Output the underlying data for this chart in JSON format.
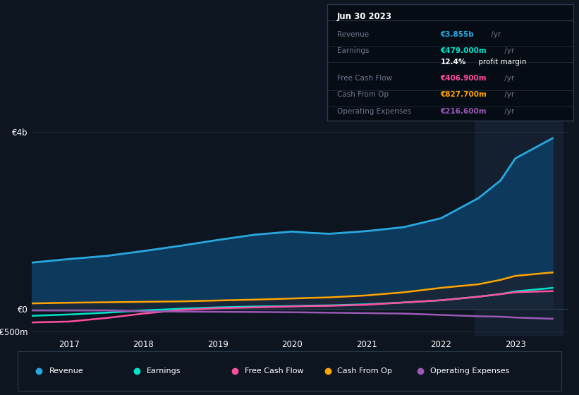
{
  "bg_color": "#0d1520",
  "plot_bg": "#0d1520",
  "years": [
    2016.5,
    2017.0,
    2017.5,
    2018.0,
    2018.5,
    2019.0,
    2019.5,
    2020.0,
    2020.25,
    2020.5,
    2021.0,
    2021.5,
    2022.0,
    2022.5,
    2022.8,
    2023.0,
    2023.5
  ],
  "revenue": [
    1050,
    1130,
    1200,
    1310,
    1430,
    1560,
    1680,
    1750,
    1720,
    1700,
    1760,
    1850,
    2050,
    2500,
    2900,
    3400,
    3855
  ],
  "earnings": [
    -150,
    -120,
    -80,
    -30,
    10,
    40,
    60,
    70,
    80,
    85,
    110,
    150,
    200,
    280,
    340,
    400,
    479
  ],
  "free_cash": [
    -300,
    -280,
    -200,
    -100,
    -20,
    20,
    40,
    60,
    70,
    75,
    100,
    150,
    200,
    280,
    340,
    380,
    407
  ],
  "cash_from_op": [
    130,
    145,
    155,
    165,
    175,
    195,
    215,
    240,
    255,
    265,
    310,
    380,
    480,
    560,
    660,
    750,
    828
  ],
  "op_expenses": [
    -30,
    -30,
    -30,
    -50,
    -55,
    -60,
    -65,
    -70,
    -75,
    -80,
    -90,
    -100,
    -130,
    -160,
    -170,
    -190,
    -217
  ],
  "revenue_color": "#29a8e0",
  "revenue_fill": "#0d3a5c",
  "earnings_color": "#00e5cc",
  "free_cash_color": "#ff4fa0",
  "cash_from_op_color": "#ffa500",
  "op_expenses_color": "#9b59b6",
  "highlight_start": 2022.45,
  "highlight_end": 2023.65,
  "ylim": [
    -600,
    4300
  ],
  "xlim": [
    2016.5,
    2023.7
  ],
  "ytick_vals": [
    -500,
    0,
    4000
  ],
  "ytick_labels": [
    "-€500m",
    "€0",
    "€4b"
  ],
  "xtick_vals": [
    2017,
    2018,
    2019,
    2020,
    2021,
    2022,
    2023
  ],
  "xtick_labels": [
    "2017",
    "2018",
    "2019",
    "2020",
    "2021",
    "2022",
    "2023"
  ],
  "grid_color": "#1e2d3d",
  "zero_line_color": "#2a3a4a",
  "info_box": {
    "title": "Jun 30 2023",
    "rows": [
      {
        "label": "Revenue",
        "value": "€3.855b /yr",
        "value_color": "#29a8e0"
      },
      {
        "label": "Earnings",
        "value": "€479.000m /yr",
        "value_color": "#00e5cc"
      },
      {
        "label": "",
        "value": "12.4% profit margin",
        "value_color": "#ffffff"
      },
      {
        "label": "Free Cash Flow",
        "value": "€406.900m /yr",
        "value_color": "#ff4fa0"
      },
      {
        "label": "Cash From Op",
        "value": "€827.700m /yr",
        "value_color": "#ffa500"
      },
      {
        "label": "Operating Expenses",
        "value": "€216.600m /yr",
        "value_color": "#9b59b6"
      }
    ]
  },
  "legend": [
    {
      "label": "Revenue",
      "color": "#29a8e0"
    },
    {
      "label": "Earnings",
      "color": "#00e5cc"
    },
    {
      "label": "Free Cash Flow",
      "color": "#ff4fa0"
    },
    {
      "label": "Cash From Op",
      "color": "#ffa500"
    },
    {
      "label": "Operating Expenses",
      "color": "#9b59b6"
    }
  ]
}
